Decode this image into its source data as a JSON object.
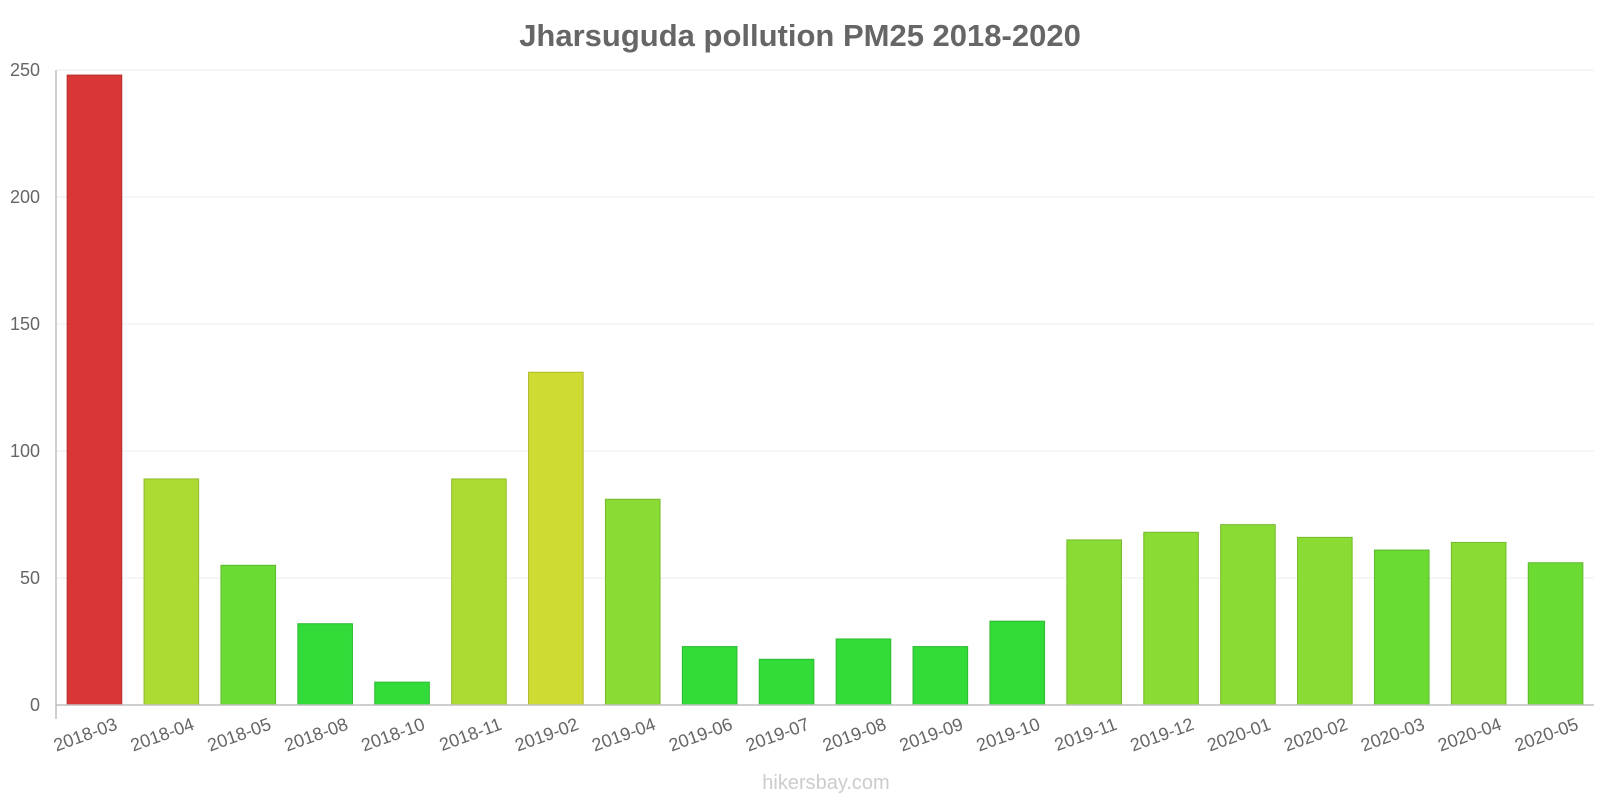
{
  "chart_data": {
    "type": "bar",
    "title": "Jharsuguda pollution PM25 2018-2020",
    "xlabel": "",
    "ylabel": "",
    "ylim": [
      0,
      250
    ],
    "yticks": [
      "0",
      "50",
      "100",
      "150",
      "200",
      "250"
    ],
    "grid": true,
    "categories": [
      "2018-03",
      "2018-04",
      "2018-05",
      "2018-08",
      "2018-10",
      "2018-11",
      "2019-02",
      "2019-04",
      "2019-06",
      "2019-07",
      "2019-08",
      "2019-09",
      "2019-10",
      "2019-11",
      "2019-12",
      "2020-01",
      "2020-02",
      "2020-03",
      "2020-04",
      "2020-05"
    ],
    "values": [
      248,
      89,
      55,
      32,
      9,
      89,
      131,
      81,
      23,
      18,
      26,
      23,
      33,
      65,
      68,
      71,
      66,
      61,
      64,
      56
    ],
    "colors": [
      "#d93636",
      "#acdb33",
      "#6bdb33",
      "#33db39",
      "#33db39",
      "#acdb33",
      "#cedb33",
      "#8adb33",
      "#33db39",
      "#33db39",
      "#33db39",
      "#33db39",
      "#33db39",
      "#8adb33",
      "#8adb33",
      "#8adb33",
      "#8adb33",
      "#6bdb33",
      "#8adb33",
      "#6bdb33"
    ],
    "strokes": [
      "#b92e2e",
      "#92ba2b",
      "#5bba2b",
      "#2bba30",
      "#2bba30",
      "#92ba2b",
      "#afba2b",
      "#75ba2b",
      "#2bba30",
      "#2bba30",
      "#2bba30",
      "#2bba30",
      "#2bba30",
      "#75ba2b",
      "#75ba2b",
      "#75ba2b",
      "#75ba2b",
      "#5bba2b",
      "#75ba2b",
      "#5bba2b"
    ]
  },
  "watermark": "hikersbay.com"
}
